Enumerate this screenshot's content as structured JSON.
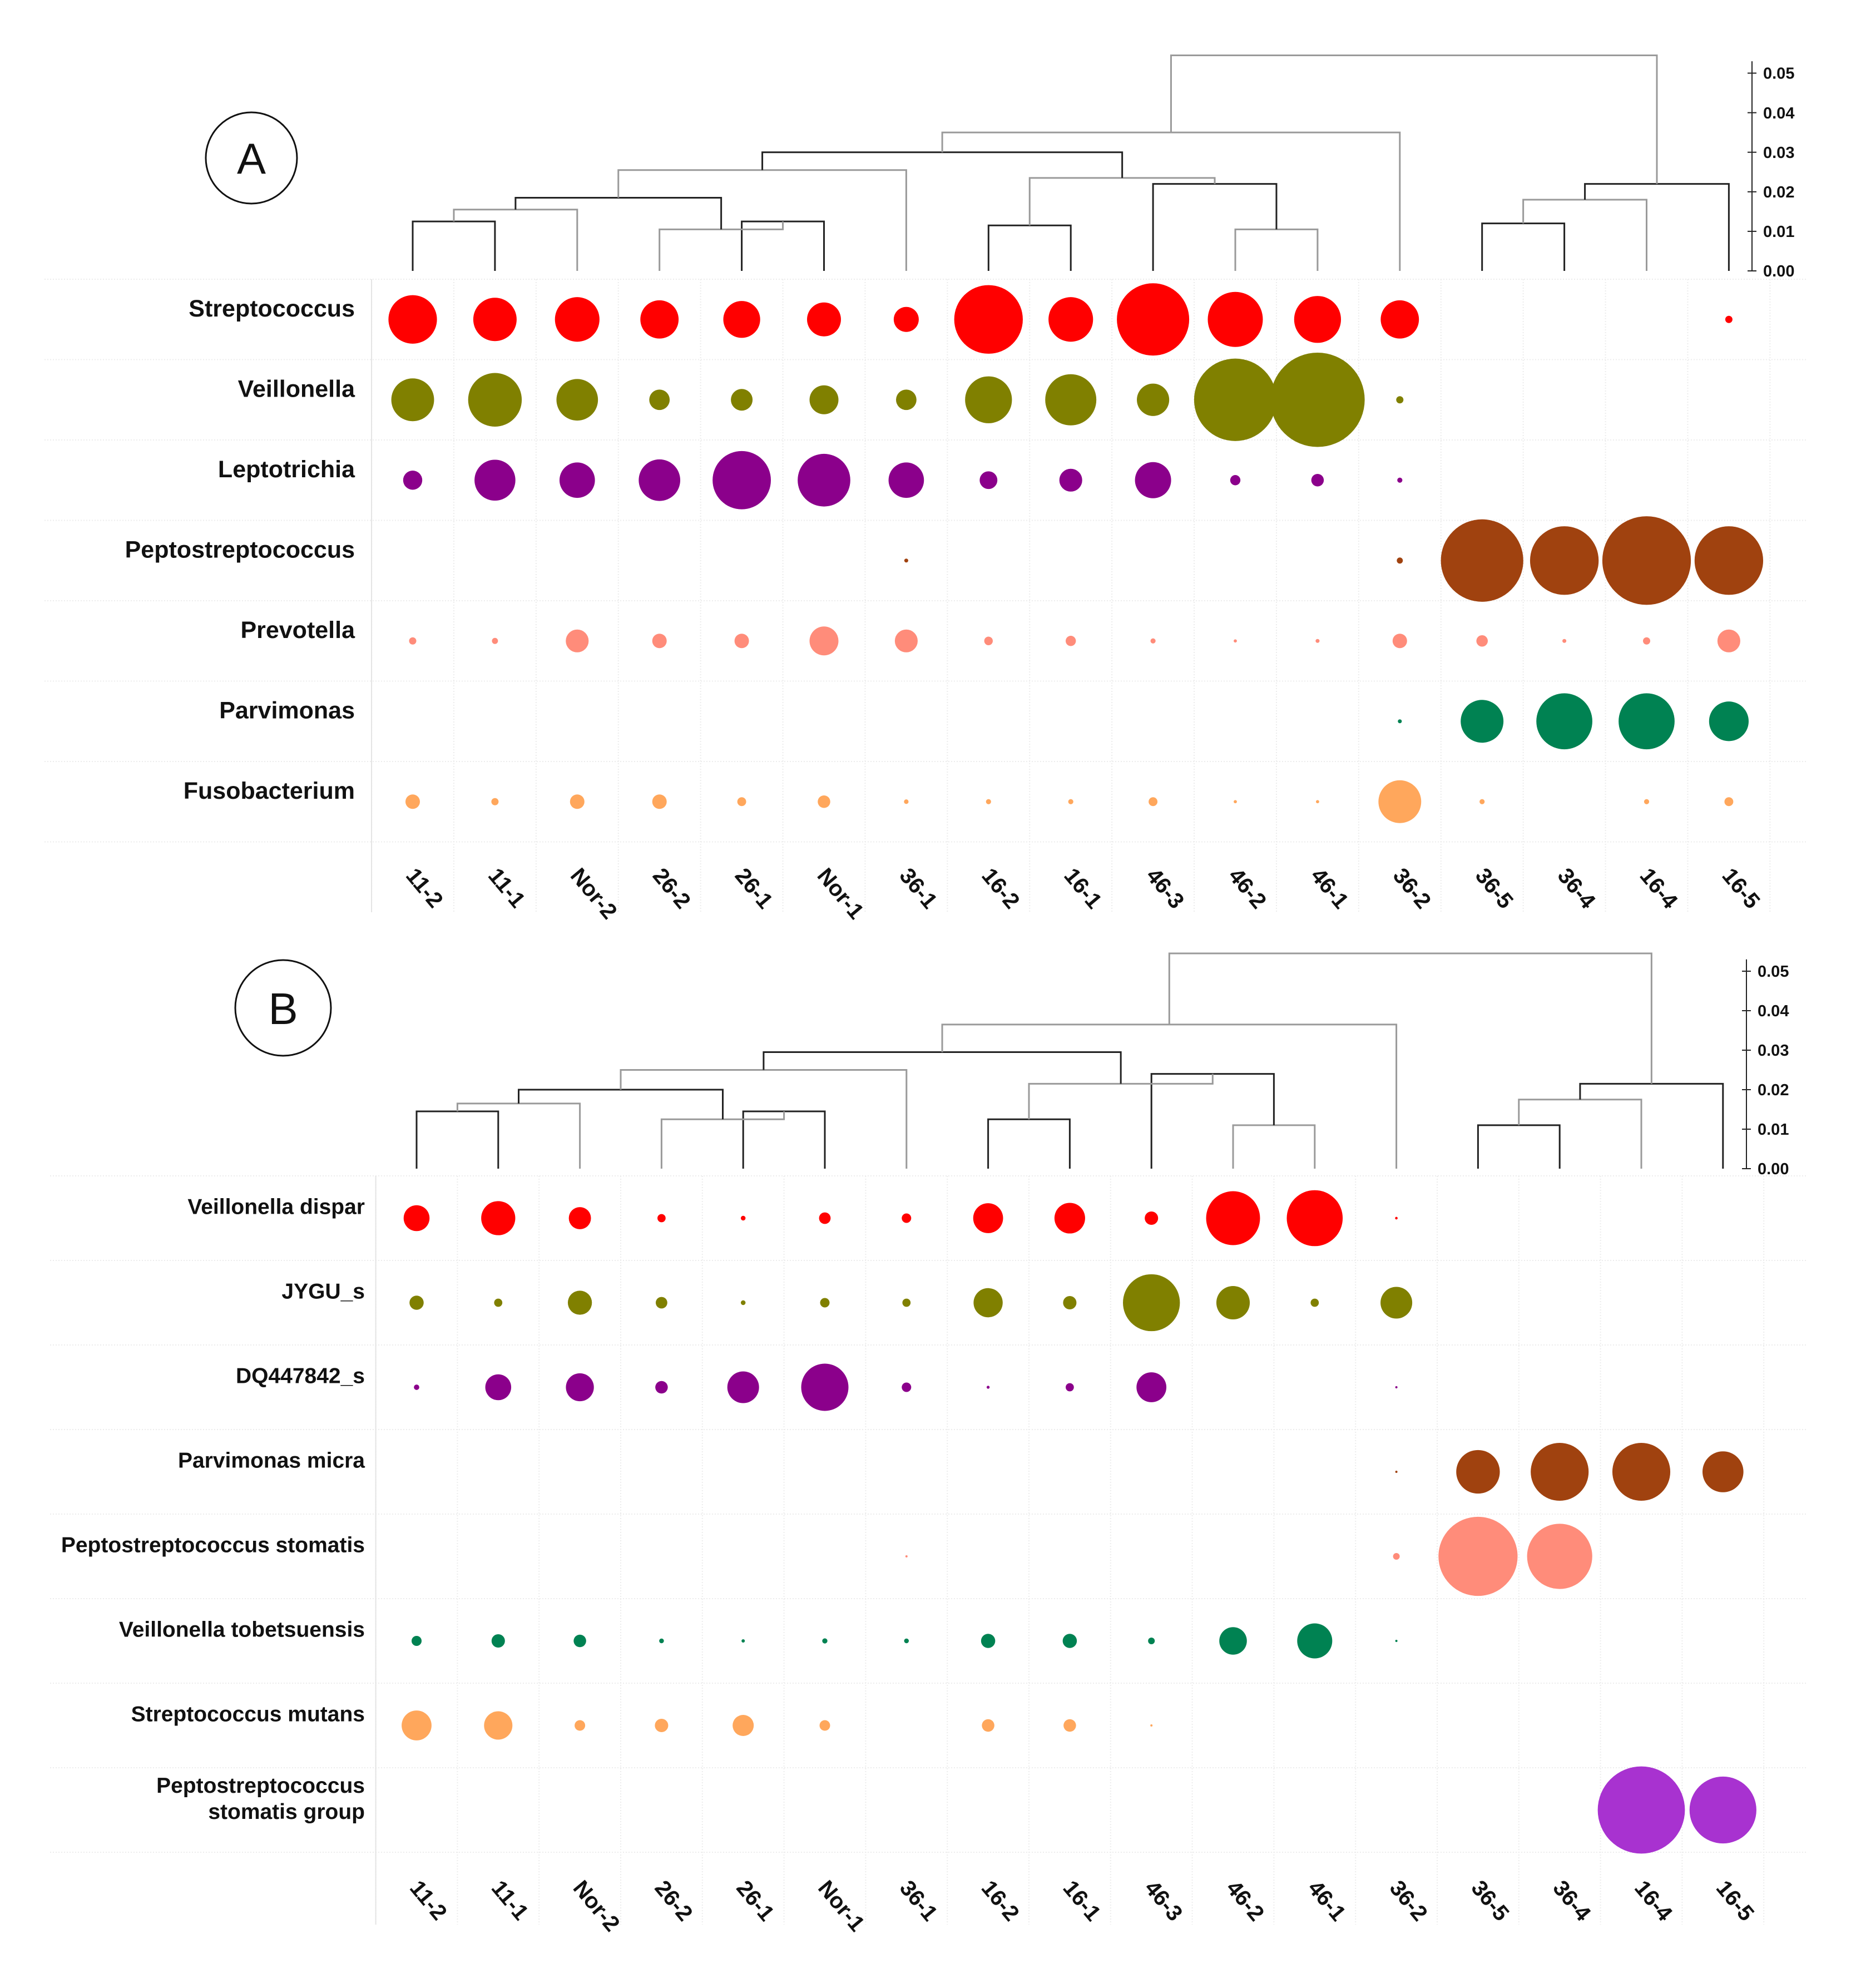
{
  "chart_data": [
    {
      "type": "bubble-matrix",
      "panel": "A",
      "columns": [
        "11-2",
        "11-1",
        "Nor-2",
        "26-2",
        "26-1",
        "Nor-1",
        "36-1",
        "16-2",
        "16-1",
        "46-3",
        "46-2",
        "46-1",
        "36-2",
        "36-5",
        "36-4",
        "16-4",
        "16-5"
      ],
      "dendrogram_axis": {
        "ticks": [
          "0.05",
          "0.04",
          "0.03",
          "0.02",
          "0.01",
          "0.00"
        ],
        "range": [
          0,
          0.055
        ]
      },
      "rows": [
        {
          "name": "Streptococcus",
          "color": "#ff0000",
          "values": [
            0.45,
            0.36,
            0.38,
            0.28,
            0.26,
            0.22,
            0.12,
            0.9,
            0.38,
            1.0,
            0.58,
            0.42,
            0.28,
            0,
            0,
            0,
            0.01
          ]
        },
        {
          "name": "Veillonella",
          "color": "#808000",
          "values": [
            0.35,
            0.55,
            0.33,
            0.08,
            0.09,
            0.16,
            0.08,
            0.42,
            0.5,
            0.2,
            1.3,
            1.7,
            0.01,
            0,
            0,
            0,
            0
          ]
        },
        {
          "name": "Leptotrichia",
          "color": "#8b008b",
          "values": [
            0.07,
            0.32,
            0.24,
            0.33,
            0.65,
            0.53,
            0.24,
            0.06,
            0.1,
            0.25,
            0.02,
            0.03,
            0.005,
            0,
            0,
            0,
            0
          ]
        },
        {
          "name": "Peptostreptococcus",
          "color": "#a0420f",
          "values": [
            0,
            0,
            0,
            0,
            0,
            0,
            0.003,
            0,
            0,
            0,
            0,
            0,
            0.007,
            1.3,
            0.9,
            1.5,
            0.9
          ]
        },
        {
          "name": "Prevotella",
          "color": "#ff8c7a",
          "values": [
            0.01,
            0.007,
            0.1,
            0.04,
            0.04,
            0.16,
            0.1,
            0.014,
            0.02,
            0.005,
            0.002,
            0.003,
            0.04,
            0.025,
            0.003,
            0.01,
            0.1
          ]
        },
        {
          "name": "Parvimonas",
          "color": "#008252",
          "values": [
            0,
            0,
            0,
            0,
            0,
            0,
            0,
            0,
            0,
            0,
            0,
            0,
            0.003,
            0.35,
            0.6,
            0.6,
            0.3
          ]
        },
        {
          "name": "Fusobacterium",
          "color": "#ffa75c",
          "values": [
            0.04,
            0.01,
            0.04,
            0.04,
            0.015,
            0.03,
            0.004,
            0.005,
            0.005,
            0.015,
            0.002,
            0.002,
            0.35,
            0.005,
            0,
            0.005,
            0.015
          ]
        }
      ],
      "dendrogram": {
        "merges": [
          {
            "l": 0,
            "r": 1,
            "h": 0.0125
          },
          {
            "l": "m0",
            "r": 2,
            "h": 0.0155
          },
          {
            "l": 4,
            "r": 5,
            "h": 0.0125
          },
          {
            "l": 3,
            "r": "m2",
            "h": 0.0105
          },
          {
            "l": "m1",
            "r": "m3",
            "h": 0.0185
          },
          {
            "l": "m4",
            "r": 6,
            "h": 0.0255
          },
          {
            "l": 7,
            "r": 8,
            "h": 0.0115
          },
          {
            "l": 10,
            "r": 11,
            "h": 0.0105
          },
          {
            "l": 9,
            "r": "m7",
            "h": 0.022
          },
          {
            "l": "m6",
            "r": "m8",
            "h": 0.0235
          },
          {
            "l": "m5",
            "r": "m9",
            "h": 0.03
          },
          {
            "l": "m10",
            "r": 12,
            "h": 0.035
          },
          {
            "l": 13,
            "r": 14,
            "h": 0.012
          },
          {
            "l": "m12",
            "r": 15,
            "h": 0.018
          },
          {
            "l": "m13",
            "r": 16,
            "h": 0.022
          },
          {
            "l": "m11",
            "r": "m14",
            "h": 0.0545
          }
        ]
      }
    },
    {
      "type": "bubble-matrix",
      "panel": "B",
      "columns": [
        "11-2",
        "11-1",
        "Nor-2",
        "26-2",
        "26-1",
        "Nor-1",
        "36-1",
        "16-2",
        "16-1",
        "46-3",
        "46-2",
        "46-1",
        "36-2",
        "36-5",
        "36-4",
        "16-4",
        "16-5"
      ],
      "dendrogram_axis": {
        "ticks": [
          "0.05",
          "0.04",
          "0.03",
          "0.02",
          "0.01",
          "0.00"
        ],
        "range": [
          0,
          0.055
        ]
      },
      "rows": [
        {
          "name": "Veillonella dispar",
          "color": "#ff0000",
          "values": [
            0.3,
            0.52,
            0.22,
            0.03,
            0.01,
            0.06,
            0.04,
            0.4,
            0.42,
            0.08,
            1.3,
            1.4,
            0.003,
            0,
            0,
            0,
            0
          ]
        },
        {
          "name": "JYGU_s",
          "color": "#808000",
          "values": [
            0.09,
            0.03,
            0.26,
            0.06,
            0.01,
            0.04,
            0.03,
            0.38,
            0.08,
            1.45,
            0.5,
            0.03,
            0.45,
            0,
            0,
            0,
            0
          ]
        },
        {
          "name": "DQ447842_s",
          "color": "#8b008b",
          "values": [
            0.013,
            0.3,
            0.35,
            0.07,
            0.45,
            1.0,
            0.04,
            0.004,
            0.03,
            0.4,
            0,
            0,
            0.002,
            0,
            0,
            0,
            0
          ]
        },
        {
          "name": "Parvimonas micra",
          "color": "#a0420f",
          "values": [
            0,
            0,
            0,
            0,
            0,
            0,
            0,
            0,
            0,
            0,
            0,
            0,
            0.002,
            0.85,
            1.5,
            1.5,
            0.75
          ]
        },
        {
          "name": "Peptostreptococcus stomatis",
          "color": "#ff8c7a",
          "values": [
            0,
            0,
            0,
            0,
            0,
            0,
            0.002,
            0,
            0,
            0,
            0,
            0,
            0.02,
            2.8,
            1.9,
            0,
            0
          ]
        },
        {
          "name": "Veillonella tobetsuensis",
          "color": "#008252",
          "values": [
            0.045,
            0.08,
            0.07,
            0.01,
            0.005,
            0.012,
            0.01,
            0.09,
            0.09,
            0.02,
            0.34,
            0.55,
            0.002,
            0,
            0,
            0,
            0
          ]
        },
        {
          "name": "Streptococcus mutans",
          "color": "#ffa75c",
          "values": [
            0.4,
            0.36,
            0.05,
            0.08,
            0.2,
            0.05,
            0,
            0.07,
            0.07,
            0.002,
            0,
            0,
            0,
            0,
            0,
            0,
            0
          ]
        },
        {
          "name": "Peptostreptococcus stomatis group",
          "label_lines": [
            "Peptostreptococcus",
            "stomatis group"
          ],
          "color": "#a832d0",
          "values": [
            0,
            0,
            0,
            0,
            0,
            0,
            0,
            0,
            0,
            0,
            0,
            0,
            0,
            0,
            0,
            3.4,
            2.0
          ]
        }
      ],
      "dendrogram": {
        "merges": [
          {
            "l": 0,
            "r": 1,
            "h": 0.0145
          },
          {
            "l": "m0",
            "r": 2,
            "h": 0.0165
          },
          {
            "l": 4,
            "r": 5,
            "h": 0.0145
          },
          {
            "l": 3,
            "r": "m2",
            "h": 0.0125
          },
          {
            "l": "m1",
            "r": "m3",
            "h": 0.02
          },
          {
            "l": "m4",
            "r": 6,
            "h": 0.025
          },
          {
            "l": 7,
            "r": 8,
            "h": 0.0125
          },
          {
            "l": 10,
            "r": 11,
            "h": 0.011
          },
          {
            "l": 9,
            "r": "m7",
            "h": 0.024
          },
          {
            "l": "m6",
            "r": "m8",
            "h": 0.0215
          },
          {
            "l": "m5",
            "r": "m9",
            "h": 0.0295
          },
          {
            "l": "m10",
            "r": 12,
            "h": 0.0365
          },
          {
            "l": 13,
            "r": 14,
            "h": 0.011
          },
          {
            "l": "m12",
            "r": 15,
            "h": 0.0175
          },
          {
            "l": "m13",
            "r": 16,
            "h": 0.0215
          },
          {
            "l": "m11",
            "r": "m14",
            "h": 0.0545
          }
        ]
      }
    }
  ]
}
